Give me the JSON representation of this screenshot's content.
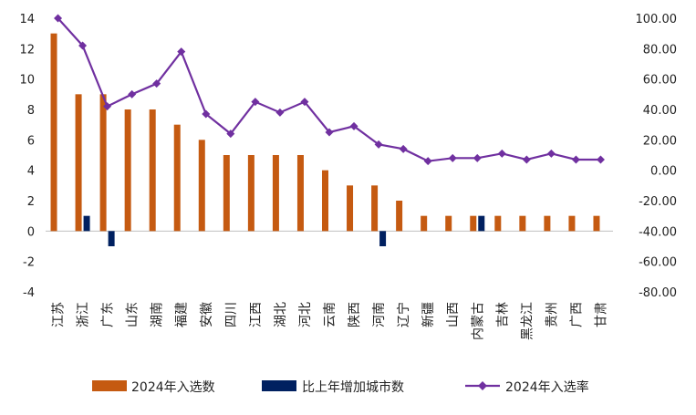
{
  "chart_data": {
    "type": "bar+line",
    "categories": [
      "江苏",
      "浙江",
      "广东",
      "山东",
      "湖南",
      "福建",
      "安徽",
      "四川",
      "江西",
      "湖北",
      "河北",
      "云南",
      "陕西",
      "河南",
      "辽宁",
      "新疆",
      "山西",
      "内蒙古",
      "吉林",
      "黑龙江",
      "贵州",
      "广西",
      "甘肃"
    ],
    "series": [
      {
        "name": "2024年入选数",
        "type": "bar",
        "axis": "left",
        "color": "#C55A11",
        "values": [
          13,
          9,
          9,
          8,
          8,
          7,
          6,
          5,
          5,
          5,
          5,
          4,
          3,
          3,
          2,
          1,
          1,
          1,
          1,
          1,
          1,
          1,
          1
        ]
      },
      {
        "name": "比上年增加城市数",
        "type": "bar",
        "axis": "left",
        "color": "#002060",
        "values": [
          0,
          1,
          -1,
          0,
          0,
          0,
          0,
          0,
          0,
          0,
          0,
          0,
          0,
          -1,
          0,
          0,
          0,
          1,
          0,
          0,
          0,
          0,
          0
        ]
      },
      {
        "name": "2024年入选率",
        "type": "line",
        "axis": "right",
        "color": "#7030A0",
        "marker": "diamond",
        "values": [
          100,
          82,
          42,
          50,
          57,
          78,
          37,
          24,
          45,
          38,
          45,
          25,
          29,
          17,
          14,
          6,
          8,
          8,
          11,
          7,
          11,
          7,
          7
        ]
      }
    ],
    "y_left": {
      "min": -4,
      "max": 14,
      "ticks": [
        "-4",
        "-2",
        "0",
        "2",
        "4",
        "6",
        "8",
        "10",
        "12",
        "14"
      ]
    },
    "y_right": {
      "min": -80,
      "max": 100,
      "ticks": [
        "-80.00",
        "-60.00",
        "-40.00",
        "-20.00",
        "0.00",
        "20.00",
        "40.00",
        "60.00",
        "80.00",
        "100.00"
      ]
    },
    "grid": false,
    "legend_position": "bottom"
  }
}
